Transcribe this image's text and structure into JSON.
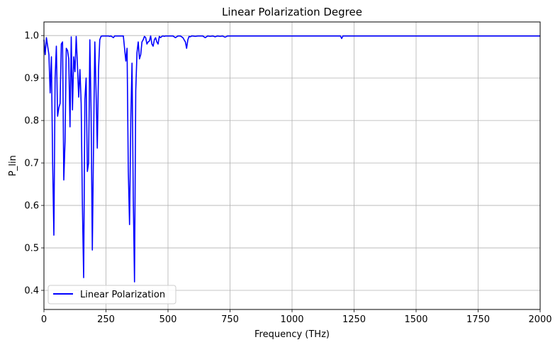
{
  "chart_data": {
    "type": "line",
    "title": "Linear Polarization Degree",
    "xlabel": "Frequency (THz)",
    "ylabel": "P_lin",
    "xlim": [
      0,
      2000
    ],
    "ylim": [
      0.355,
      1.032
    ],
    "xticks": [
      0,
      250,
      500,
      750,
      1000,
      1250,
      1500,
      1750,
      2000
    ],
    "yticks": [
      0.4,
      0.5,
      0.6,
      0.7,
      0.8,
      0.9,
      1.0
    ],
    "xtick_labels": [
      "0",
      "250",
      "500",
      "750",
      "1000",
      "1250",
      "1500",
      "1750",
      "2000"
    ],
    "ytick_labels": [
      "0.4",
      "0.5",
      "0.6",
      "0.7",
      "0.8",
      "0.9",
      "1.0"
    ],
    "grid": true,
    "legend": {
      "position": "lower-left",
      "entries": [
        "Linear Polarization"
      ]
    },
    "series": [
      {
        "name": "Linear Polarization",
        "color": "#0000ff",
        "x": [
          0,
          5,
          10,
          15,
          20,
          25,
          30,
          35,
          40,
          45,
          50,
          55,
          60,
          65,
          70,
          75,
          80,
          85,
          90,
          95,
          100,
          105,
          110,
          115,
          120,
          125,
          130,
          135,
          140,
          145,
          150,
          155,
          160,
          165,
          170,
          175,
          180,
          185,
          190,
          195,
          200,
          205,
          210,
          215,
          220,
          225,
          230,
          235,
          240,
          245,
          250,
          255,
          260,
          265,
          270,
          275,
          280,
          285,
          290,
          300,
          310,
          320,
          330,
          335,
          340,
          345,
          350,
          355,
          360,
          365,
          370,
          375,
          380,
          385,
          390,
          395,
          400,
          405,
          410,
          415,
          420,
          425,
          430,
          435,
          440,
          445,
          450,
          455,
          460,
          465,
          470,
          475,
          480,
          485,
          490,
          495,
          500,
          510,
          520,
          530,
          540,
          550,
          560,
          570,
          575,
          580,
          585,
          590,
          595,
          600,
          610,
          620,
          630,
          640,
          650,
          660,
          670,
          680,
          690,
          700,
          710,
          720,
          730,
          740,
          750,
          760,
          770,
          780,
          800,
          850,
          900,
          950,
          1000,
          1050,
          1100,
          1150,
          1195,
          1200,
          1205,
          1210,
          1250,
          1300,
          1350,
          1400,
          1500,
          1600,
          1700,
          1800,
          1900,
          2000
        ],
        "y": [
          0.99,
          0.955,
          0.995,
          0.975,
          0.955,
          0.865,
          0.95,
          0.7,
          0.53,
          0.9,
          0.975,
          0.81,
          0.83,
          0.84,
          0.98,
          0.985,
          0.66,
          0.75,
          0.97,
          0.965,
          0.945,
          0.785,
          0.997,
          0.825,
          0.95,
          0.915,
          0.998,
          0.93,
          0.855,
          0.92,
          0.84,
          0.6,
          0.43,
          0.85,
          0.9,
          0.68,
          0.7,
          0.99,
          0.82,
          0.495,
          0.75,
          0.985,
          0.87,
          0.735,
          0.92,
          0.99,
          0.998,
          0.999,
          0.999,
          0.999,
          0.999,
          0.999,
          0.999,
          0.998,
          0.999,
          0.997,
          0.995,
          0.999,
          0.999,
          0.999,
          0.999,
          0.999,
          0.94,
          0.97,
          0.68,
          0.555,
          0.8,
          0.935,
          0.62,
          0.42,
          0.87,
          0.96,
          0.985,
          0.945,
          0.955,
          0.985,
          0.99,
          0.998,
          0.995,
          0.98,
          0.985,
          0.987,
          0.999,
          0.98,
          0.975,
          0.99,
          0.995,
          0.985,
          0.98,
          0.998,
          0.995,
          0.998,
          0.999,
          0.998,
          0.999,
          0.999,
          0.999,
          0.999,
          0.999,
          0.995,
          0.999,
          0.999,
          0.995,
          0.985,
          0.97,
          0.99,
          0.998,
          0.997,
          0.999,
          0.999,
          0.998,
          0.999,
          0.999,
          0.999,
          0.995,
          0.999,
          0.998,
          0.999,
          0.997,
          0.999,
          0.998,
          0.999,
          0.996,
          0.999,
          0.999,
          0.999,
          0.999,
          0.999,
          0.999,
          0.999,
          0.999,
          0.999,
          0.999,
          0.999,
          0.999,
          0.999,
          0.999,
          0.993,
          0.999,
          0.999,
          0.999,
          0.999,
          0.999,
          0.999,
          0.999,
          0.999,
          0.999,
          0.999,
          0.999,
          0.999
        ]
      }
    ]
  }
}
